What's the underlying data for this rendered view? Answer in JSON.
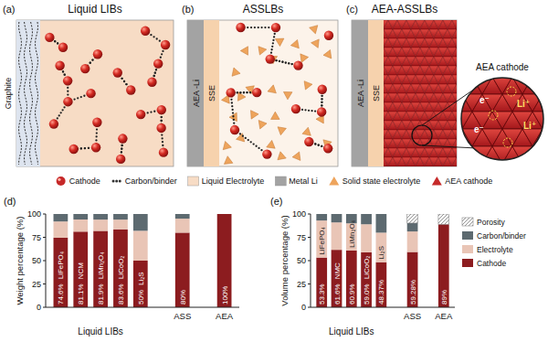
{
  "letters": [
    "(a)",
    "(b)",
    "(c)",
    "(d)",
    "(e)"
  ],
  "diagram": {
    "panels": [
      {
        "title": "Liquid LIBs",
        "labels": [
          "Graphite"
        ]
      },
      {
        "title": "ASSLBs",
        "labels": [
          "SSE",
          "AEA -Li"
        ]
      },
      {
        "title": "AEA-ASSLBs",
        "labels": [
          "SSE",
          "AEA -Li"
        ]
      }
    ],
    "zoom": {
      "title": "AEA cathode",
      "labels": [
        "e⁻",
        "e⁻",
        "Li⁺",
        "Li⁺"
      ]
    },
    "legend": [
      {
        "label": "Cathode",
        "marker": "sphere",
        "color": "#c62828"
      },
      {
        "label": "Carbon/binder",
        "marker": "dots",
        "color": "#333333"
      },
      {
        "label": "Liquid Electrolyte",
        "marker": "square",
        "color": "#f7dcc5"
      },
      {
        "label": "Metal Li",
        "marker": "square",
        "color": "#a3a3a3"
      },
      {
        "label": "Solid state electrolyte",
        "marker": "triangle",
        "color": "#eea45c"
      },
      {
        "label": "AEA cathode",
        "marker": "triangle",
        "color": "#c62a2a"
      }
    ]
  },
  "chart_data": [
    {
      "type": "bar",
      "stacked": true,
      "data_labels": true,
      "ylabel": "Weight percentage (%)",
      "ylim": [
        0,
        100
      ],
      "yticks": [
        0,
        25,
        50,
        75,
        100
      ],
      "categories": [
        "LiFePO₄",
        "NCM",
        "LiMn₂O₄",
        "LiCoO₂",
        "Li₂S",
        "ASS",
        "AEA"
      ],
      "groups": [
        "Liquid LIBs",
        "Liquid LIBs",
        "Liquid LIBs",
        "Liquid LIBs",
        "Liquid LIBs",
        null,
        null
      ],
      "series": [
        {
          "name": "Cathode",
          "color": "#8c1c1f",
          "values": [
            74.6,
            81.1,
            81.9,
            83.6,
            50,
            80,
            100
          ],
          "value_labels": [
            "74.6%",
            "81.1%",
            "81.9%",
            "83.6%",
            "50%",
            "80%",
            "100%"
          ]
        },
        {
          "name": "Electrolyte",
          "color": "#e9c5b6",
          "values": [
            17.4,
            13,
            12.1,
            10.4,
            32,
            15,
            0
          ]
        },
        {
          "name": "Carbon/binder",
          "color": "#5d6a70",
          "values": [
            8,
            5.9,
            6,
            6,
            18,
            5,
            0
          ]
        }
      ]
    },
    {
      "type": "bar",
      "stacked": true,
      "data_labels": true,
      "legend": "right",
      "ylabel": "Volume percentage (%)",
      "ylim": [
        0,
        100
      ],
      "yticks": [
        0,
        25,
        50,
        75,
        100
      ],
      "categories": [
        "LiFePO₄",
        "NMC",
        "LiMn₂O₄",
        "LiCoO₂",
        "Li₂S",
        "ASS",
        "AEA"
      ],
      "groups": [
        "Liquid LIBs",
        "Liquid LIBs",
        "Liquid LIBs",
        "Liquid LIBs",
        "Liquid LIBs",
        null,
        null
      ],
      "series": [
        {
          "name": "Cathode",
          "color": "#8c1c1f",
          "values": [
            53.3,
            61.6,
            60.9,
            59.0,
            48.37,
            59.28,
            89
          ],
          "value_labels": [
            "53.3%",
            "61.6%",
            "60.9%",
            "59.0%",
            "48.37%",
            "59.28%",
            "89%"
          ]
        },
        {
          "name": "Electrolyte",
          "color": "#e9c5b6",
          "values": [
            39.7,
            29.4,
            29.1,
            30,
            31.63,
            22,
            0
          ]
        },
        {
          "name": "Carbon/binder",
          "color": "#5d6a70",
          "values": [
            7,
            9,
            10,
            11,
            20,
            9,
            0
          ]
        },
        {
          "name": "Porosity",
          "color": "#888888",
          "marker": "hatch",
          "values": [
            0,
            0,
            0,
            0,
            0,
            9.72,
            11
          ]
        }
      ]
    }
  ]
}
